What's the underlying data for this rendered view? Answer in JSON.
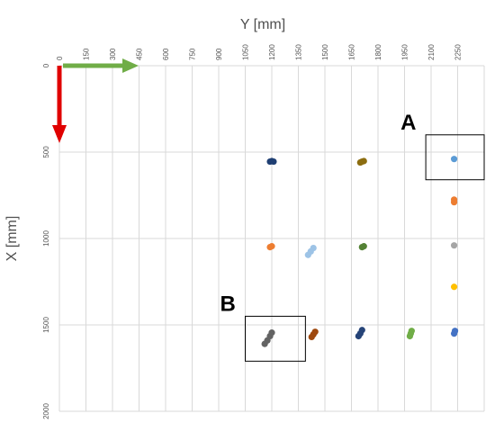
{
  "chart_data": {
    "type": "scatter",
    "title": "",
    "xlabel": "Y [mm]",
    "ylabel": "X [mm]",
    "x_axis_position": "top",
    "y_axis_inverted": true,
    "xlim": [
      0,
      2400
    ],
    "ylim": [
      0,
      2000
    ],
    "x_ticks": [
      0,
      150,
      300,
      450,
      600,
      750,
      900,
      1050,
      1200,
      1350,
      1500,
      1650,
      1800,
      1950,
      2100,
      2250
    ],
    "y_ticks": [
      0,
      500,
      1000,
      1500,
      2000
    ],
    "grid": {
      "vertical": true,
      "horizontal": true
    },
    "clusters": [
      {
        "color": "#1f3f73",
        "points": [
          [
            1190,
            555
          ],
          [
            1200,
            552
          ],
          [
            1210,
            555
          ]
        ]
      },
      {
        "color": "#8c6d10",
        "points": [
          [
            1700,
            560
          ],
          [
            1710,
            555
          ],
          [
            1720,
            552
          ]
        ]
      },
      {
        "color": "#5b9bd5",
        "points": [
          [
            2230,
            540
          ]
        ]
      },
      {
        "color": "#ed7d31",
        "points": [
          [
            2230,
            775
          ],
          [
            2230,
            790
          ]
        ]
      },
      {
        "color": "#ed7d31",
        "points": [
          [
            1190,
            1050
          ],
          [
            1200,
            1045
          ]
        ]
      },
      {
        "color": "#9dc3e6",
        "points": [
          [
            1405,
            1095
          ],
          [
            1420,
            1075
          ],
          [
            1435,
            1055
          ]
        ]
      },
      {
        "color": "#548235",
        "points": [
          [
            1710,
            1050
          ],
          [
            1720,
            1045
          ]
        ]
      },
      {
        "color": "#a5a5a5",
        "points": [
          [
            2230,
            1040
          ]
        ]
      },
      {
        "color": "#ffc000",
        "points": [
          [
            2230,
            1280
          ]
        ]
      },
      {
        "color": "#636363",
        "points": [
          [
            1160,
            1610
          ],
          [
            1175,
            1590
          ],
          [
            1190,
            1565
          ],
          [
            1200,
            1545
          ]
        ]
      },
      {
        "color": "#9e480e",
        "points": [
          [
            1425,
            1570
          ],
          [
            1435,
            1555
          ],
          [
            1445,
            1540
          ]
        ]
      },
      {
        "color": "#264478",
        "points": [
          [
            1690,
            1565
          ],
          [
            1700,
            1550
          ],
          [
            1710,
            1530
          ]
        ]
      },
      {
        "color": "#70ad47",
        "points": [
          [
            1980,
            1565
          ],
          [
            1985,
            1550
          ],
          [
            1990,
            1535
          ]
        ]
      },
      {
        "color": "#4472c4",
        "points": [
          [
            2230,
            1550
          ],
          [
            2235,
            1535
          ]
        ]
      }
    ],
    "annotations": [
      {
        "label": "A",
        "box": {
          "x": [
            2070,
            2400
          ],
          "y": [
            400,
            660
          ]
        }
      },
      {
        "label": "B",
        "box": {
          "x": [
            1050,
            1390
          ],
          "y": [
            1450,
            1710
          ]
        }
      }
    ],
    "arrows": [
      {
        "direction": "y-axis",
        "color": "#70ad47"
      },
      {
        "direction": "x-axis",
        "color": "#e00000"
      }
    ]
  }
}
